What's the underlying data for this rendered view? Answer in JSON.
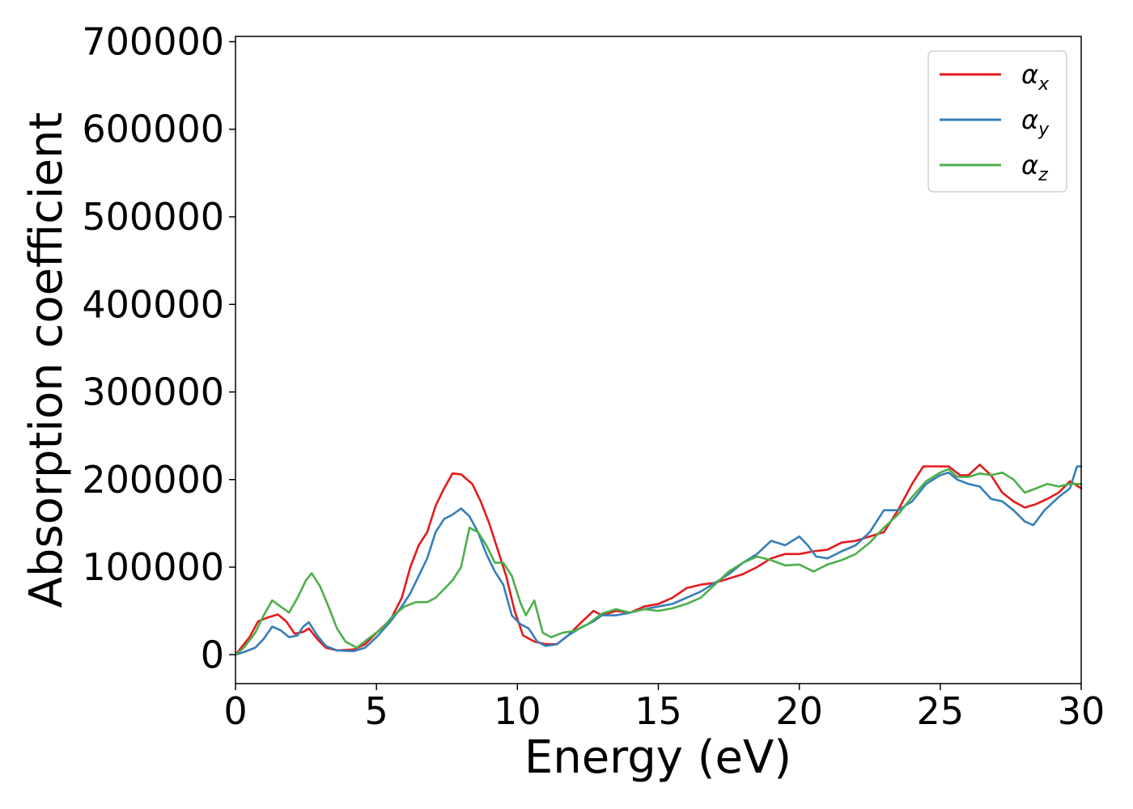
{
  "chart_data": {
    "type": "line",
    "title": "",
    "xlabel": "Energy (eV)",
    "ylabel": "Absorption coefficient",
    "xlim": [
      0,
      30
    ],
    "ylim": [
      -33000,
      706000
    ],
    "xticks": [
      0,
      5,
      10,
      15,
      20,
      25,
      30
    ],
    "xtick_labels": [
      "0",
      "5",
      "10",
      "15",
      "20",
      "25",
      "30"
    ],
    "yticks": [
      0,
      100000,
      200000,
      300000,
      400000,
      500000,
      600000,
      700000
    ],
    "ytick_labels": [
      "0",
      "100000",
      "200000",
      "300000",
      "400000",
      "500000",
      "600000",
      "700000"
    ],
    "grid": false,
    "legend_position": "top-right",
    "series": [
      {
        "name": "αx",
        "label_base": "α",
        "label_sub": "x",
        "color": "#e41a1c",
        "points": [
          [
            0,
            0
          ],
          [
            0.2,
            8000
          ],
          [
            0.5,
            20000
          ],
          [
            0.8,
            38000
          ],
          [
            1.1,
            42000
          ],
          [
            1.5,
            46000
          ],
          [
            1.8,
            38000
          ],
          [
            2.1,
            24000
          ],
          [
            2.4,
            26000
          ],
          [
            2.6,
            30000
          ],
          [
            2.9,
            18000
          ],
          [
            3.2,
            8000
          ],
          [
            3.6,
            5000
          ],
          [
            4.2,
            6000
          ],
          [
            4.6,
            12000
          ],
          [
            5.0,
            25000
          ],
          [
            5.5,
            40000
          ],
          [
            5.9,
            65000
          ],
          [
            6.2,
            100000
          ],
          [
            6.5,
            125000
          ],
          [
            6.8,
            140000
          ],
          [
            7.1,
            170000
          ],
          [
            7.4,
            190000
          ],
          [
            7.7,
            207000
          ],
          [
            8.0,
            206000
          ],
          [
            8.4,
            195000
          ],
          [
            8.7,
            175000
          ],
          [
            9.0,
            150000
          ],
          [
            9.3,
            120000
          ],
          [
            9.6,
            90000
          ],
          [
            9.9,
            50000
          ],
          [
            10.2,
            22000
          ],
          [
            10.6,
            15000
          ],
          [
            11.0,
            12000
          ],
          [
            11.4,
            12000
          ],
          [
            11.8,
            22000
          ],
          [
            12.2,
            35000
          ],
          [
            12.7,
            50000
          ],
          [
            13.0,
            45000
          ],
          [
            13.5,
            50000
          ],
          [
            14.0,
            48000
          ],
          [
            14.5,
            55000
          ],
          [
            15.0,
            58000
          ],
          [
            15.5,
            65000
          ],
          [
            16.0,
            76000
          ],
          [
            16.5,
            80000
          ],
          [
            17.0,
            82000
          ],
          [
            17.5,
            87000
          ],
          [
            18.0,
            92000
          ],
          [
            18.5,
            100000
          ],
          [
            19.0,
            110000
          ],
          [
            19.5,
            115000
          ],
          [
            20.0,
            115000
          ],
          [
            20.5,
            118000
          ],
          [
            21.0,
            120000
          ],
          [
            21.5,
            128000
          ],
          [
            22.0,
            130000
          ],
          [
            22.5,
            135000
          ],
          [
            23.0,
            140000
          ],
          [
            23.5,
            165000
          ],
          [
            24.0,
            195000
          ],
          [
            24.4,
            215000
          ],
          [
            24.8,
            215000
          ],
          [
            25.3,
            215000
          ],
          [
            25.7,
            205000
          ],
          [
            26.0,
            205000
          ],
          [
            26.4,
            217000
          ],
          [
            26.8,
            205000
          ],
          [
            27.2,
            185000
          ],
          [
            27.6,
            175000
          ],
          [
            28.0,
            168000
          ],
          [
            28.4,
            172000
          ],
          [
            28.8,
            178000
          ],
          [
            29.2,
            185000
          ],
          [
            29.6,
            198000
          ],
          [
            30.0,
            190000
          ]
        ]
      },
      {
        "name": "αy",
        "label_base": "α",
        "label_sub": "y",
        "color": "#377eb8",
        "points": [
          [
            0,
            0
          ],
          [
            0.3,
            3000
          ],
          [
            0.7,
            8000
          ],
          [
            1.0,
            18000
          ],
          [
            1.3,
            32000
          ],
          [
            1.6,
            28000
          ],
          [
            1.9,
            20000
          ],
          [
            2.2,
            22000
          ],
          [
            2.4,
            32000
          ],
          [
            2.6,
            37000
          ],
          [
            2.9,
            22000
          ],
          [
            3.2,
            10000
          ],
          [
            3.6,
            5000
          ],
          [
            4.2,
            4000
          ],
          [
            4.6,
            8000
          ],
          [
            5.0,
            20000
          ],
          [
            5.5,
            38000
          ],
          [
            5.9,
            55000
          ],
          [
            6.2,
            70000
          ],
          [
            6.5,
            90000
          ],
          [
            6.8,
            110000
          ],
          [
            7.1,
            140000
          ],
          [
            7.4,
            155000
          ],
          [
            7.7,
            160000
          ],
          [
            8.0,
            167000
          ],
          [
            8.3,
            158000
          ],
          [
            8.6,
            140000
          ],
          [
            8.9,
            115000
          ],
          [
            9.2,
            95000
          ],
          [
            9.5,
            80000
          ],
          [
            9.8,
            45000
          ],
          [
            10.1,
            35000
          ],
          [
            10.4,
            30000
          ],
          [
            10.7,
            15000
          ],
          [
            11.0,
            10000
          ],
          [
            11.4,
            12000
          ],
          [
            11.8,
            22000
          ],
          [
            12.2,
            30000
          ],
          [
            12.7,
            38000
          ],
          [
            13.0,
            45000
          ],
          [
            13.5,
            45000
          ],
          [
            14.0,
            48000
          ],
          [
            14.5,
            52000
          ],
          [
            15.0,
            55000
          ],
          [
            15.5,
            58000
          ],
          [
            16.0,
            65000
          ],
          [
            16.5,
            72000
          ],
          [
            17.0,
            82000
          ],
          [
            17.5,
            92000
          ],
          [
            18.0,
            105000
          ],
          [
            18.5,
            115000
          ],
          [
            19.0,
            130000
          ],
          [
            19.5,
            125000
          ],
          [
            20.0,
            135000
          ],
          [
            20.3,
            125000
          ],
          [
            20.6,
            112000
          ],
          [
            21.0,
            110000
          ],
          [
            21.5,
            118000
          ],
          [
            22.0,
            125000
          ],
          [
            22.5,
            140000
          ],
          [
            23.0,
            165000
          ],
          [
            23.5,
            165000
          ],
          [
            24.0,
            175000
          ],
          [
            24.5,
            195000
          ],
          [
            25.0,
            205000
          ],
          [
            25.3,
            208000
          ],
          [
            25.6,
            200000
          ],
          [
            26.0,
            195000
          ],
          [
            26.4,
            192000
          ],
          [
            26.8,
            178000
          ],
          [
            27.2,
            175000
          ],
          [
            27.6,
            165000
          ],
          [
            28.0,
            152000
          ],
          [
            28.3,
            148000
          ],
          [
            28.7,
            165000
          ],
          [
            29.2,
            180000
          ],
          [
            29.6,
            190000
          ],
          [
            29.85,
            215000
          ],
          [
            30.0,
            215000
          ]
        ]
      },
      {
        "name": "αz",
        "label_base": "α",
        "label_sub": "z",
        "color": "#4daf4a",
        "points": [
          [
            0,
            0
          ],
          [
            0.3,
            8000
          ],
          [
            0.7,
            25000
          ],
          [
            1.0,
            45000
          ],
          [
            1.3,
            62000
          ],
          [
            1.6,
            55000
          ],
          [
            1.9,
            48000
          ],
          [
            2.2,
            65000
          ],
          [
            2.5,
            85000
          ],
          [
            2.7,
            93000
          ],
          [
            3.0,
            78000
          ],
          [
            3.3,
            55000
          ],
          [
            3.6,
            30000
          ],
          [
            3.9,
            15000
          ],
          [
            4.3,
            8000
          ],
          [
            4.7,
            18000
          ],
          [
            5.2,
            30000
          ],
          [
            5.6,
            45000
          ],
          [
            6.0,
            55000
          ],
          [
            6.4,
            60000
          ],
          [
            6.8,
            60000
          ],
          [
            7.1,
            65000
          ],
          [
            7.4,
            75000
          ],
          [
            7.7,
            85000
          ],
          [
            8.0,
            100000
          ],
          [
            8.3,
            145000
          ],
          [
            8.6,
            140000
          ],
          [
            8.9,
            125000
          ],
          [
            9.2,
            105000
          ],
          [
            9.5,
            105000
          ],
          [
            9.8,
            90000
          ],
          [
            10.1,
            60000
          ],
          [
            10.3,
            45000
          ],
          [
            10.6,
            62000
          ],
          [
            10.9,
            25000
          ],
          [
            11.2,
            20000
          ],
          [
            11.6,
            25000
          ],
          [
            12.0,
            27000
          ],
          [
            12.5,
            35000
          ],
          [
            13.0,
            47000
          ],
          [
            13.5,
            52000
          ],
          [
            14.0,
            48000
          ],
          [
            14.5,
            52000
          ],
          [
            15.0,
            50000
          ],
          [
            15.5,
            53000
          ],
          [
            16.0,
            58000
          ],
          [
            16.5,
            65000
          ],
          [
            17.0,
            80000
          ],
          [
            17.5,
            95000
          ],
          [
            18.0,
            105000
          ],
          [
            18.5,
            112000
          ],
          [
            19.0,
            108000
          ],
          [
            19.5,
            102000
          ],
          [
            20.0,
            103000
          ],
          [
            20.5,
            95000
          ],
          [
            21.0,
            103000
          ],
          [
            21.5,
            108000
          ],
          [
            22.0,
            115000
          ],
          [
            22.5,
            128000
          ],
          [
            23.0,
            145000
          ],
          [
            23.5,
            160000
          ],
          [
            24.0,
            180000
          ],
          [
            24.5,
            198000
          ],
          [
            25.0,
            208000
          ],
          [
            25.3,
            212000
          ],
          [
            25.6,
            203000
          ],
          [
            26.0,
            203000
          ],
          [
            26.4,
            207000
          ],
          [
            26.8,
            205000
          ],
          [
            27.2,
            208000
          ],
          [
            27.6,
            200000
          ],
          [
            28.0,
            185000
          ],
          [
            28.4,
            190000
          ],
          [
            28.8,
            195000
          ],
          [
            29.2,
            192000
          ],
          [
            29.6,
            195000
          ],
          [
            30.0,
            195000
          ]
        ]
      }
    ]
  }
}
